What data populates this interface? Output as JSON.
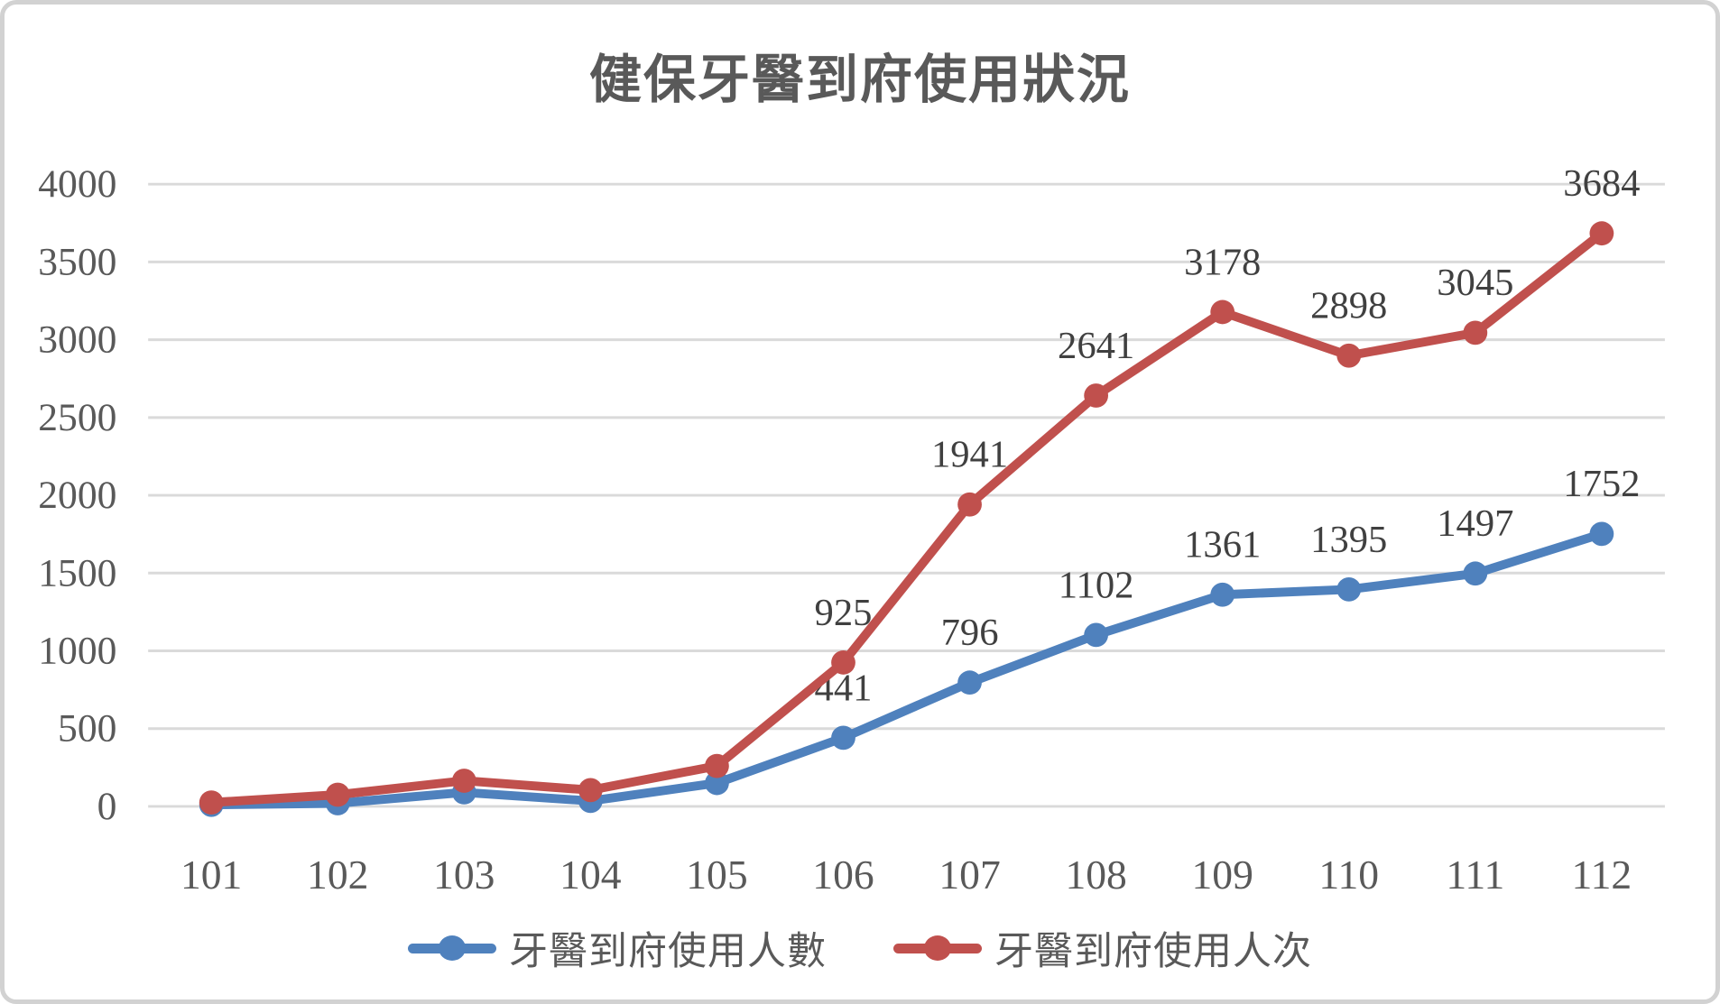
{
  "chart_data": {
    "type": "line",
    "title": "健保牙醫到府使用狀況",
    "categories": [
      "101",
      "102",
      "103",
      "104",
      "105",
      "106",
      "107",
      "108",
      "109",
      "110",
      "111",
      "112"
    ],
    "y_axis": {
      "min": 0,
      "max": 4000,
      "step": 500
    },
    "x_axis_label": "",
    "y_axis_label": "",
    "grid": "horizontal",
    "legend_position": "bottom-center",
    "series": [
      {
        "name": "牙醫到府使用人數",
        "color": "#4F81BD",
        "values": [
          10,
          20,
          90,
          35,
          150,
          441,
          796,
          1102,
          1361,
          1395,
          1497,
          1752
        ],
        "data_labels": [
          "",
          "",
          "",
          "",
          "",
          "441",
          "796",
          "1102",
          "1361",
          "1395",
          "1497",
          "1752"
        ]
      },
      {
        "name": "牙醫到府使用人次",
        "color": "#C0504D",
        "values": [
          25,
          75,
          165,
          105,
          260,
          925,
          1941,
          2641,
          3178,
          2898,
          3045,
          3684
        ],
        "data_labels": [
          "",
          "",
          "",
          "",
          "",
          "925",
          "1941",
          "2641",
          "3178",
          "2898",
          "3045",
          "3684"
        ]
      }
    ],
    "colors": {
      "gridline": "#DADADA",
      "axis_text": "#595959",
      "data_label_text": "#404040",
      "title_text": "#595959",
      "frame_border": "#D2D2D2"
    }
  }
}
